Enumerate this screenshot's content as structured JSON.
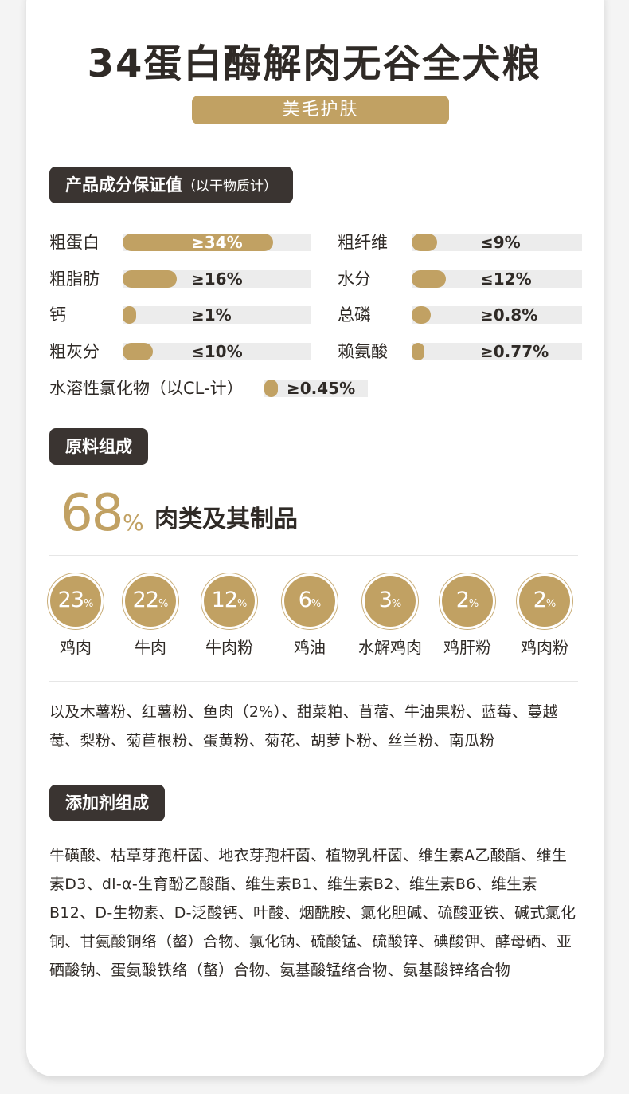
{
  "title": "34蛋白酶解肉无谷全犬粮",
  "subtitle": "美毛护肤",
  "guarantee": {
    "heading": "产品成分保证值",
    "heading_note": "（以干物质计）",
    "items": [
      {
        "label": "粗蛋白",
        "value": "≥34%",
        "level": 0.8
      },
      {
        "label": "粗纤维",
        "value": "≤9%",
        "level": 0.15
      },
      {
        "label": "粗脂肪",
        "value": "≥16%",
        "level": 0.29
      },
      {
        "label": "水分",
        "value": "≤12%",
        "level": 0.2
      },
      {
        "label": "钙",
        "value": "≥1%",
        "level": 0.07
      },
      {
        "label": "总磷",
        "value": "≥0.8%",
        "level": 0.11
      },
      {
        "label": "粗灰分",
        "value": "≤10%",
        "level": 0.16
      },
      {
        "label": "赖氨酸",
        "value": "≥0.77%",
        "level": 0.06
      },
      {
        "label": "水溶性氯化物（以CL-计）",
        "value": "≥0.45%",
        "level": 0.13
      }
    ]
  },
  "raw": {
    "heading": "原料组成",
    "meat_pct": "68",
    "meat_pct_sign": "%",
    "meat_label": "肉类及其制品",
    "ingredients": [
      {
        "num": "23",
        "sign": "%",
        "name": "鸡肉"
      },
      {
        "num": "22",
        "sign": "%",
        "name": "牛肉"
      },
      {
        "num": "12",
        "sign": "%",
        "name": "牛肉粉"
      },
      {
        "num": "6",
        "sign": "%",
        "name": "鸡油"
      },
      {
        "num": "3",
        "sign": "%",
        "name": "水解鸡肉"
      },
      {
        "num": "2",
        "sign": "%",
        "name": "鸡肝粉"
      },
      {
        "num": "2",
        "sign": "%",
        "name": "鸡肉粉"
      }
    ],
    "others": "以及木薯粉、红薯粉、鱼肉（2%）、甜菜粕、苜蓿、牛油果粉、蓝莓、蔓越莓、梨粉、菊苣根粉、蛋黄粉、菊花、胡萝卜粉、丝兰粉、南瓜粉"
  },
  "additives": {
    "heading": "添加剂组成",
    "text": "牛磺酸、枯草芽孢杆菌、地衣芽孢杆菌、植物乳杆菌、维生素A乙酸酯、维生素D3、dl-α-生育酚乙酸酯、维生素B1、维生素B2、维生素B6、维生素B12、D-生物素、D-泛酸钙、叶酸、烟酰胺、氯化胆碱、硫酸亚铁、碱式氯化铜、甘氨酸铜络（螯）合物、氯化钠、硫酸锰、硫酸锌、碘酸钾、酵母硒、亚硒酸钠、蛋氨酸铁络（螯）合物、氨基酸锰络合物、氨基酸锌络合物"
  },
  "colors": {
    "accent": "#c1a163",
    "dark": "#3a3431",
    "track": "#ececec"
  }
}
